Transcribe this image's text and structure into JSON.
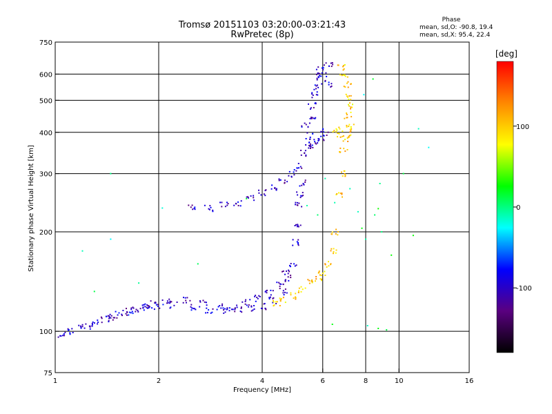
{
  "chart_data": {
    "type": "scatter",
    "title": "Tromsø 20151103 03:20:00-03:21:43",
    "subtitle": "RwPretec (8p)",
    "xlabel": "Frequency [MHz]",
    "ylabel": "Stationary phase Virtual Height [km]",
    "x_scale": "log",
    "y_scale": "log",
    "xlim": [
      1,
      16
    ],
    "ylim": [
      75,
      750
    ],
    "x_ticks": [
      1,
      2,
      4,
      6,
      8,
      10,
      16
    ],
    "y_ticks": [
      75,
      100,
      200,
      300,
      400,
      500,
      600,
      750
    ],
    "x_grid": [
      2,
      4,
      6,
      8,
      10
    ],
    "y_grid": [
      100,
      200,
      300,
      400,
      500,
      600
    ],
    "grid": true,
    "stats": {
      "title": "Phase",
      "line1": "mean, sd,O: -90.8, 19.4",
      "line2": "mean, sd,X:  95.4, 22.4"
    },
    "colorbar": {
      "unit": "[deg]",
      "min": -180,
      "max": 180,
      "ticks": [
        100,
        0,
        -100
      ],
      "colors": [
        "#000000",
        "#5a0080",
        "#0000ff",
        "#00ffff",
        "#00ff00",
        "#ffff00",
        "#ff8800",
        "#ff0000"
      ]
    },
    "point_groups": [
      {
        "name": "lower-trace",
        "points": [
          [
            1.05,
            98
          ],
          [
            1.1,
            100
          ],
          [
            1.2,
            103
          ],
          [
            1.3,
            106
          ],
          [
            1.4,
            109
          ],
          [
            1.5,
            112
          ],
          [
            1.6,
            114
          ],
          [
            1.7,
            116
          ],
          [
            1.8,
            118
          ],
          [
            1.9,
            119
          ],
          [
            2.0,
            120
          ],
          [
            2.2,
            120
          ],
          [
            2.5,
            118
          ],
          [
            2.8,
            116
          ],
          [
            3.1,
            115.5
          ],
          [
            3.4,
            115.5
          ],
          [
            3.7,
            117
          ],
          [
            4.0,
            119
          ],
          [
            4.3,
            124
          ],
          [
            4.6,
            132
          ],
          [
            4.8,
            145
          ],
          [
            4.9,
            160
          ],
          [
            5.0,
            185
          ],
          [
            5.05,
            210
          ],
          [
            5.1,
            240
          ],
          [
            5.15,
            260
          ],
          [
            5.2,
            280
          ],
          [
            1.25,
            104
          ],
          [
            1.45,
            110
          ],
          [
            1.65,
            116
          ],
          [
            1.85,
            121
          ],
          [
            2.1,
            123
          ],
          [
            2.4,
            124
          ],
          [
            2.7,
            121
          ],
          [
            3.0,
            119
          ],
          [
            3.3,
            118
          ],
          [
            3.6,
            122
          ],
          [
            3.9,
            126
          ],
          [
            4.2,
            130
          ],
          [
            4.5,
            140
          ],
          [
            4.7,
            152
          ]
        ],
        "phase": -100
      },
      {
        "name": "upper-trace",
        "points": [
          [
            2.5,
            236
          ],
          [
            2.8,
            235
          ],
          [
            3.1,
            240
          ],
          [
            3.4,
            245
          ],
          [
            3.7,
            252
          ],
          [
            4.0,
            262
          ],
          [
            4.3,
            272
          ],
          [
            4.6,
            285
          ],
          [
            4.9,
            300
          ],
          [
            5.1,
            315
          ],
          [
            5.3,
            345
          ],
          [
            5.5,
            390
          ],
          [
            5.6,
            440
          ],
          [
            5.7,
            520
          ],
          [
            5.8,
            590
          ],
          [
            5.9,
            630
          ],
          [
            5.45,
            370
          ],
          [
            5.5,
            360
          ],
          [
            5.7,
            375
          ],
          [
            5.9,
            385
          ],
          [
            6.1,
            400
          ],
          [
            5.35,
            420
          ],
          [
            5.6,
            480
          ],
          [
            5.8,
            550
          ],
          [
            6.0,
            600
          ],
          [
            6.2,
            560
          ],
          [
            6.3,
            640
          ]
        ],
        "phase": -100
      },
      {
        "name": "x-mode",
        "points": [
          [
            4.4,
            121
          ],
          [
            4.6,
            124
          ],
          [
            4.9,
            128
          ],
          [
            5.2,
            134
          ],
          [
            5.5,
            140
          ],
          [
            5.8,
            145
          ],
          [
            6.0,
            150
          ],
          [
            6.2,
            160
          ],
          [
            6.4,
            175
          ],
          [
            6.5,
            200
          ],
          [
            6.7,
            260
          ],
          [
            6.8,
            300
          ],
          [
            6.9,
            350
          ],
          [
            7.0,
            380
          ],
          [
            7.1,
            400
          ],
          [
            7.2,
            420
          ],
          [
            7.1,
            450
          ],
          [
            7.2,
            480
          ],
          [
            7.15,
            510
          ],
          [
            7.1,
            560
          ],
          [
            6.9,
            600
          ],
          [
            6.8,
            630
          ],
          [
            6.6,
            410
          ],
          [
            6.75,
            395
          ]
        ],
        "phase": 100
      },
      {
        "name": "scattered",
        "points": [
          [
            1.45,
            300
          ],
          [
            1.45,
            190
          ],
          [
            2.05,
            236
          ],
          [
            1.3,
            132
          ],
          [
            1.2,
            175
          ],
          [
            1.75,
            140
          ],
          [
            2.6,
            160
          ],
          [
            3.6,
            252
          ],
          [
            5.4,
            240
          ],
          [
            5.8,
            225
          ],
          [
            6.1,
            290
          ],
          [
            6.5,
            245
          ],
          [
            7.2,
            270
          ],
          [
            7.6,
            230
          ],
          [
            7.8,
            205
          ],
          [
            8.0,
            190
          ],
          [
            8.5,
            225
          ],
          [
            8.7,
            235
          ],
          [
            8.9,
            200
          ],
          [
            9.5,
            170
          ],
          [
            10.3,
            300
          ],
          [
            11,
            195
          ],
          [
            11.4,
            410
          ],
          [
            12.2,
            360
          ],
          [
            6.4,
            105
          ],
          [
            8.1,
            104
          ],
          [
            8.7,
            102
          ],
          [
            9.2,
            101
          ],
          [
            8.8,
            280
          ],
          [
            7.9,
            520
          ],
          [
            8.4,
            580
          ]
        ],
        "phase": 0
      }
    ]
  }
}
